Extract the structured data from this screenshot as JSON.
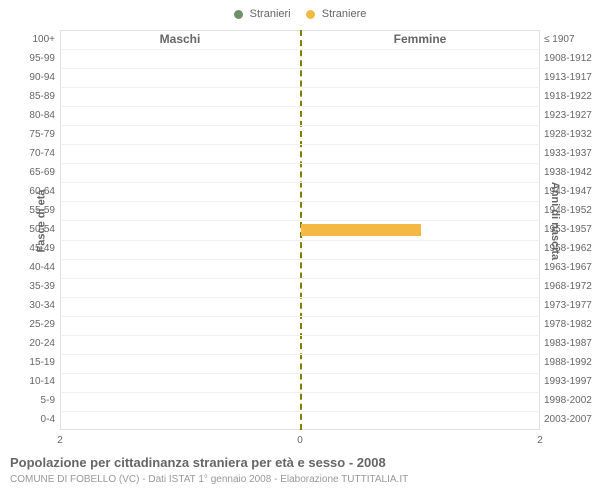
{
  "legend": {
    "items": [
      {
        "label": "Stranieri",
        "color": "#6b9166"
      },
      {
        "label": "Straniere",
        "color": "#f4b942"
      }
    ]
  },
  "chart": {
    "headers": {
      "left": "Maschi",
      "right": "Femmine"
    },
    "y_label_left": "Fasce di età",
    "y_label_right": "Anni di nascita",
    "age_groups": [
      "100+",
      "95-99",
      "90-94",
      "85-89",
      "80-84",
      "75-79",
      "70-74",
      "65-69",
      "60-64",
      "55-59",
      "50-54",
      "45-49",
      "40-44",
      "35-39",
      "30-34",
      "25-29",
      "20-24",
      "15-19",
      "10-14",
      "5-9",
      "0-4"
    ],
    "birth_years": [
      "≤ 1907",
      "1908-1912",
      "1913-1917",
      "1918-1922",
      "1923-1927",
      "1928-1932",
      "1933-1937",
      "1938-1942",
      "1943-1947",
      "1948-1952",
      "1953-1957",
      "1958-1962",
      "1963-1967",
      "1968-1972",
      "1973-1977",
      "1978-1982",
      "1983-1987",
      "1988-1992",
      "1993-1997",
      "1998-2002",
      "2003-2007"
    ],
    "x_ticks": [
      "2",
      "0",
      "2"
    ],
    "x_max": 2,
    "bar": {
      "age_group_index": 10,
      "value": 1,
      "color": "#f4b942"
    },
    "grid_color": "#f0f0f0",
    "border_color": "#e0e0e0",
    "center_line_color": "#808000"
  },
  "title": "Popolazione per cittadinanza straniera per età e sesso - 2008",
  "subtitle": "COMUNE DI FOBELLO (VC) - Dati ISTAT 1° gennaio 2008 - Elaborazione TUTTITALIA.IT"
}
